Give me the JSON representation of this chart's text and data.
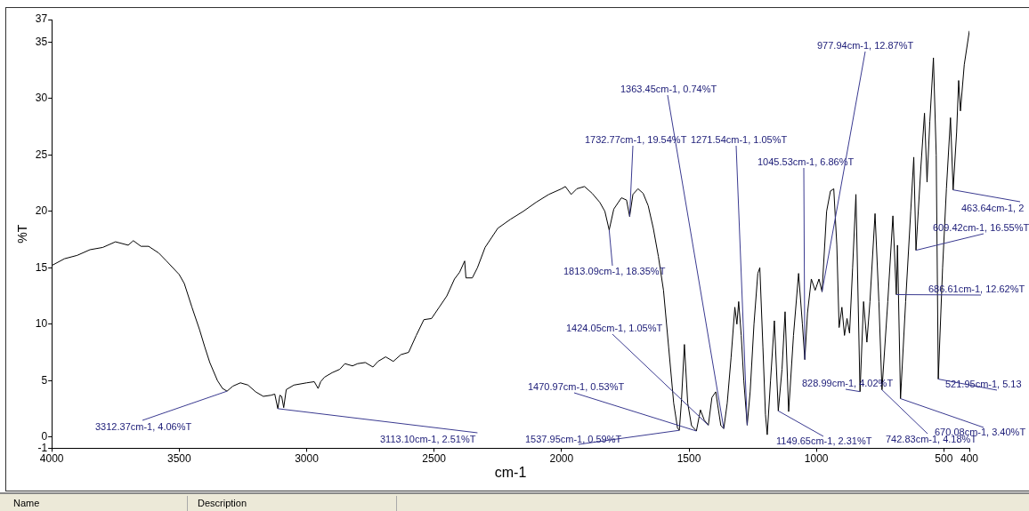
{
  "chart_data": {
    "type": "line",
    "xlabel": "cm-1",
    "ylabel": "%T",
    "xlim": [
      4000,
      400
    ],
    "xticks": [
      4000,
      3500,
      3000,
      2500,
      2000,
      1500,
      1000,
      500,
      400
    ],
    "ylim": [
      -1,
      37
    ],
    "yticks": [
      -1,
      0,
      5,
      10,
      15,
      20,
      25,
      30,
      35,
      37
    ],
    "grid": false,
    "legend": false,
    "series": [
      {
        "color": "#000000",
        "x": [
          4000,
          3950,
          3900,
          3850,
          3800,
          3750,
          3700,
          3680,
          3650,
          3620,
          3580,
          3550,
          3500,
          3480,
          3450,
          3420,
          3400,
          3380,
          3350,
          3330,
          3312.37,
          3290,
          3260,
          3230,
          3200,
          3170,
          3140,
          3125,
          3113.1,
          3105,
          3098,
          3090,
          3080,
          3050,
          3000,
          2970,
          2955,
          2945,
          2930,
          2900,
          2870,
          2850,
          2820,
          2800,
          2770,
          2740,
          2720,
          2690,
          2660,
          2630,
          2600,
          2570,
          2540,
          2510,
          2480,
          2450,
          2420,
          2400,
          2380,
          2375,
          2350,
          2330,
          2300,
          2250,
          2200,
          2150,
          2100,
          2050,
          2000,
          1985,
          1962,
          1940,
          1910,
          1880,
          1850,
          1830,
          1813.09,
          1795,
          1765,
          1745,
          1732.77,
          1720,
          1700,
          1680,
          1660,
          1640,
          1620,
          1600,
          1580,
          1560,
          1545,
          1537.95,
          1530,
          1518,
          1505,
          1490,
          1470.97,
          1455,
          1440,
          1424.05,
          1410,
          1395,
          1385,
          1375,
          1363.45,
          1350,
          1335,
          1320,
          1312,
          1305,
          1295,
          1285,
          1271.54,
          1260,
          1245,
          1230,
          1222,
          1210,
          1200,
          1193,
          1180,
          1165,
          1149.65,
          1135,
          1123,
          1109,
          1090,
          1070,
          1055,
          1045.53,
          1035,
          1020,
          1005,
          990,
          977.94,
          960,
          945,
          932,
          920,
          911,
          900,
          890,
          880,
          870,
          858,
          845,
          828.99,
          815,
          802,
          790,
          770,
          755,
          742.83,
          720,
          700,
          686.61,
          682,
          670.08,
          650,
          630,
          618,
          609.42,
          590,
          576,
          566,
          555,
          541,
          530,
          521.95,
          505,
          490,
          474,
          463.64,
          450,
          442,
          435,
          420,
          400
        ],
        "values": [
          15.2,
          15.8,
          16.1,
          16.6,
          16.8,
          17.3,
          17.0,
          17.4,
          16.9,
          16.9,
          16.3,
          15.6,
          14.4,
          13.6,
          11.5,
          9.5,
          8.0,
          6.6,
          5.0,
          4.3,
          4.06,
          4.5,
          4.8,
          4.6,
          4.0,
          3.6,
          3.7,
          3.8,
          2.51,
          3.7,
          3.6,
          2.6,
          4.2,
          4.6,
          4.8,
          4.9,
          4.3,
          4.9,
          5.3,
          5.7,
          6.0,
          6.5,
          6.3,
          6.5,
          6.6,
          6.2,
          6.7,
          7.1,
          6.7,
          7.3,
          7.5,
          9.0,
          10.4,
          10.5,
          11.5,
          12.5,
          14.0,
          14.6,
          15.6,
          14.1,
          14.1,
          15.0,
          16.8,
          18.5,
          19.3,
          20.0,
          20.8,
          21.5,
          22.0,
          22.2,
          21.5,
          22.0,
          22.2,
          21.6,
          20.8,
          20.0,
          18.35,
          20.2,
          21.2,
          21.0,
          19.54,
          21.5,
          22.0,
          21.6,
          20.5,
          18.5,
          16.0,
          13.0,
          8.0,
          3.0,
          0.8,
          0.59,
          3.0,
          8.2,
          3.0,
          1.0,
          0.53,
          2.4,
          1.5,
          1.05,
          3.5,
          4.0,
          2.5,
          1.0,
          0.74,
          3.0,
          7.0,
          11.5,
          10.0,
          12.0,
          9.0,
          5.0,
          1.05,
          4.0,
          10.0,
          14.5,
          15.0,
          8.0,
          2.0,
          0.2,
          5.0,
          10.3,
          2.31,
          6.0,
          11.1,
          2.25,
          9.0,
          14.5,
          10.0,
          6.86,
          11.0,
          14.0,
          13.0,
          14.0,
          12.87,
          20.0,
          21.8,
          22.0,
          17.0,
          9.7,
          11.5,
          9.0,
          10.5,
          9.2,
          15.0,
          21.5,
          4.02,
          12.0,
          8.4,
          12.0,
          19.8,
          12.0,
          4.18,
          12.0,
          19.6,
          12.62,
          17.0,
          3.4,
          12.0,
          20.0,
          24.8,
          16.55,
          24.0,
          28.7,
          22.6,
          28.0,
          33.6,
          25.0,
          5.13,
          15.0,
          22.0,
          28.3,
          21.9,
          27.0,
          31.6,
          28.9,
          33.0,
          36.0
        ]
      }
    ],
    "annotations": [
      {
        "text": "3312.37cm-1, 4.06%T",
        "x": 3312.37,
        "y": 4.06
      },
      {
        "text": "3113.10cm-1, 2.51%T",
        "x": 3113.1,
        "y": 2.51
      },
      {
        "text": "1813.09cm-1, 18.35%T",
        "x": 1813.09,
        "y": 18.35
      },
      {
        "text": "1732.77cm-1, 19.54%T",
        "x": 1732.77,
        "y": 19.54
      },
      {
        "text": "1363.45cm-1, 0.74%T",
        "x": 1363.45,
        "y": 0.74
      },
      {
        "text": "1271.54cm-1, 1.05%T",
        "x": 1271.54,
        "y": 1.05
      },
      {
        "text": "1045.53cm-1, 6.86%T",
        "x": 1045.53,
        "y": 6.86
      },
      {
        "text": "977.94cm-1, 12.87%T",
        "x": 977.94,
        "y": 12.87
      },
      {
        "text": "463.64cm-1, 2",
        "x": 463.64,
        "y": 21.9
      },
      {
        "text": "609.42cm-1, 16.55%T",
        "x": 609.42,
        "y": 16.55
      },
      {
        "text": "686.61cm-1, 12.62%T",
        "x": 686.61,
        "y": 12.62
      },
      {
        "text": "1424.05cm-1, 1.05%T",
        "x": 1424.05,
        "y": 1.05
      },
      {
        "text": "828.99cm-1, 4.02%T",
        "x": 828.99,
        "y": 4.02
      },
      {
        "text": "521.95cm-1, 5.13",
        "x": 521.95,
        "y": 5.13
      },
      {
        "text": "1470.97cm-1, 0.53%T",
        "x": 1470.97,
        "y": 0.53
      },
      {
        "text": "670.08cm-1, 3.40%T",
        "x": 670.08,
        "y": 3.4
      },
      {
        "text": "1537.95cm-1, 0.59%T",
        "x": 1537.95,
        "y": 0.59
      },
      {
        "text": "1149.65cm-1, 2.31%T",
        "x": 1149.65,
        "y": 2.31
      },
      {
        "text": "742.83cm-1, 4.18%T",
        "x": 742.83,
        "y": 4.18
      },
      "Name",
      "Description"
    ]
  }
}
